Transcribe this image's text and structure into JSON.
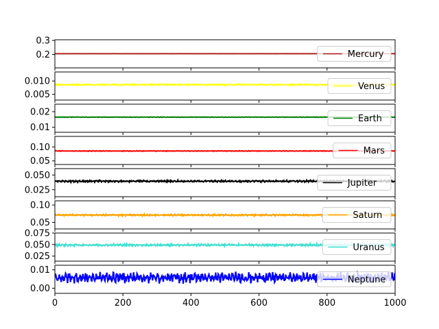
{
  "chart_data": {
    "type": "line",
    "xlim": [
      0,
      1000
    ],
    "x_ticks": [
      0,
      200,
      400,
      600,
      800,
      1000
    ],
    "x_tick_labels": [
      "0",
      "200",
      "400",
      "600",
      "800",
      "1000"
    ],
    "legend_placement": "right",
    "grid": false,
    "panels": [
      {
        "name": "Mercury",
        "color": "#b22222",
        "ylim": [
          0.105,
          0.305
        ],
        "y_ticks": [
          0.2,
          0.3
        ],
        "y_tick_labels": [
          "0.2",
          "0.3"
        ],
        "base": 0.2056,
        "amplitude": 0.0005,
        "legend_text": "Mercury"
      },
      {
        "name": "Venus",
        "color": "#ffff00",
        "ylim": [
          0.0028,
          0.0134
        ],
        "y_ticks": [
          0.005,
          0.01
        ],
        "y_tick_labels": [
          "0.005",
          "0.010"
        ],
        "base": 0.0086,
        "amplitude": 0.0003,
        "legend_text": "Venus"
      },
      {
        "name": "Earth",
        "color": "#008000",
        "ylim": [
          0.0068,
          0.0248
        ],
        "y_ticks": [
          0.01,
          0.02
        ],
        "y_tick_labels": [
          "0.01",
          "0.02"
        ],
        "base": 0.0165,
        "amplitude": 0.0002,
        "legend_text": "Earth"
      },
      {
        "name": "Mars",
        "color": "#ff0000",
        "ylim": [
          0.037,
          0.138
        ],
        "y_ticks": [
          0.05,
          0.1
        ],
        "y_tick_labels": [
          "0.05",
          "0.10"
        ],
        "base": 0.0855,
        "amplitude": 0.0015,
        "legend_text": "Mars"
      },
      {
        "name": "Jupiter",
        "color": "#000000",
        "ylim": [
          0.013,
          0.061
        ],
        "y_ticks": [
          0.025,
          0.05
        ],
        "y_tick_labels": [
          "0.025",
          "0.050"
        ],
        "base": 0.0395,
        "amplitude": 0.0018,
        "legend_text": "Jupiter"
      },
      {
        "name": "Saturn",
        "color": "#ffa500",
        "ylim": [
          0.031,
          0.112
        ],
        "y_ticks": [
          0.05,
          0.1
        ],
        "y_tick_labels": [
          "0.05",
          "0.10"
        ],
        "base": 0.071,
        "amplitude": 0.0028,
        "legend_text": "Saturn"
      },
      {
        "name": "Uranus",
        "color": "#40e0d0",
        "ylim": [
          0.014,
          0.075
        ],
        "y_ticks": [
          0.025,
          0.05,
          0.075
        ],
        "y_tick_labels": [
          "0.025",
          "0.050",
          "0.075"
        ],
        "base": 0.049,
        "amplitude": 0.0028,
        "legend_text": "Uranus"
      },
      {
        "name": "Neptune",
        "color": "#0000ff",
        "ylim": [
          -0.0028,
          0.0125
        ],
        "y_ticks": [
          0.0,
          0.01
        ],
        "y_tick_labels": [
          "0.00",
          "0.01"
        ],
        "base": 0.0058,
        "amplitude": 0.0035,
        "legend_text": "Neptune"
      }
    ]
  }
}
